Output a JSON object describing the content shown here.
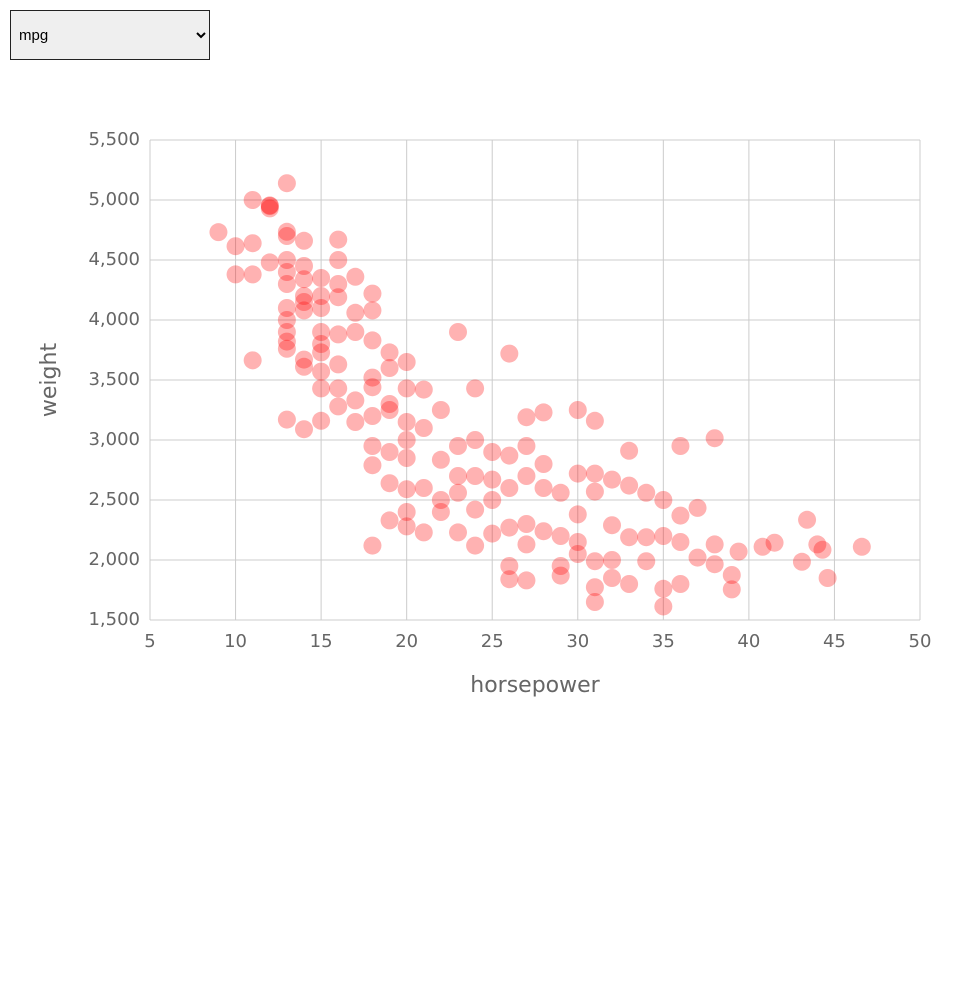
{
  "dropdown": {
    "selected": "mpg"
  },
  "chart_data": {
    "type": "scatter",
    "x_label": "horsepower",
    "y_label": "weight",
    "color": "#ff0000",
    "grid": true,
    "xlim": [
      5,
      50
    ],
    "xticks": [
      5,
      10,
      15,
      20,
      25,
      30,
      35,
      40,
      45,
      50
    ],
    "ylim": [
      1500,
      5500
    ],
    "yticks": [
      {
        "value": 1500,
        "label": "1,500"
      },
      {
        "value": 2000,
        "label": "2,000"
      },
      {
        "value": 2500,
        "label": "2,500"
      },
      {
        "value": 3000,
        "label": "3,000"
      },
      {
        "value": 3500,
        "label": "3,500"
      },
      {
        "value": 4000,
        "label": "4,000"
      },
      {
        "value": 4500,
        "label": "4,500"
      },
      {
        "value": 5000,
        "label": "5,000"
      },
      {
        "value": 5500,
        "label": "5,500"
      }
    ],
    "x": [
      9,
      10,
      10,
      11,
      11,
      11,
      11,
      12,
      12,
      12,
      12,
      13,
      13,
      13,
      13,
      13,
      13,
      13,
      13,
      13,
      13,
      13,
      13,
      14,
      14,
      14,
      14,
      14,
      14,
      14,
      14,
      14,
      15,
      15,
      15,
      15,
      15,
      15,
      15,
      15,
      15,
      16,
      16,
      16,
      16,
      16,
      16,
      16,
      16,
      17,
      17,
      17,
      17,
      17,
      18,
      18,
      18,
      18,
      18,
      18,
      18,
      18,
      18,
      19,
      19,
      19,
      19,
      19,
      19,
      19,
      20,
      20,
      20,
      20,
      20,
      20,
      20,
      20,
      21,
      21,
      21,
      21,
      22,
      22,
      22,
      22,
      23,
      23,
      23,
      23,
      23,
      24,
      24,
      24,
      24,
      24,
      25,
      25,
      25,
      25,
      26,
      26,
      26,
      26,
      26,
      26,
      27,
      27,
      27,
      27,
      27,
      27,
      28,
      28,
      28,
      28,
      29,
      29,
      29,
      29,
      30,
      30,
      30,
      30,
      30,
      31,
      31,
      31,
      31,
      31,
      31,
      32,
      32,
      32,
      32,
      33,
      33,
      33,
      33,
      34,
      34,
      34,
      35,
      35,
      35,
      35,
      36,
      36,
      36,
      36,
      37,
      37,
      38,
      38,
      38,
      39,
      39,
      39.4,
      40.8,
      41.5,
      43.1,
      43.4,
      44,
      44.3,
      44.6,
      46.6
    ],
    "y": [
      4732,
      4615,
      4380,
      4640,
      4380,
      3664,
      5000,
      4950,
      4955,
      4480,
      4930,
      5140,
      4735,
      4700,
      4500,
      4400,
      4300,
      4100,
      4000,
      3900,
      3820,
      3760,
      3170,
      4660,
      4450,
      4340,
      4200,
      4150,
      4080,
      3670,
      3610,
      3090,
      4350,
      4200,
      4100,
      3900,
      3800,
      3730,
      3570,
      3430,
      3160,
      4670,
      4500,
      4300,
      4190,
      3880,
      3630,
      3430,
      3280,
      4360,
      4060,
      3900,
      3330,
      3150,
      4220,
      4080,
      3830,
      3520,
      3440,
      3200,
      2950,
      2790,
      2120,
      3730,
      3600,
      3300,
      3250,
      2900,
      2640,
      2330,
      3650,
      3430,
      3150,
      3000,
      2850,
      2590,
      2400,
      2280,
      3420,
      3100,
      2600,
      2230,
      3250,
      2835,
      2500,
      2400,
      3900,
      2950,
      2700,
      2560,
      2230,
      3430,
      3000,
      2700,
      2420,
      2120,
      2900,
      2670,
      2500,
      2220,
      3720,
      2870,
      2600,
      2270,
      1950,
      1840,
      3190,
      2950,
      2700,
      2300,
      2130,
      1830,
      3230,
      2800,
      2600,
      2240,
      2560,
      2200,
      1950,
      1870,
      3250,
      2720,
      2380,
      2150,
      2050,
      3160,
      2720,
      2570,
      1990,
      1773,
      1650,
      2670,
      2290,
      2000,
      1850,
      2910,
      2620,
      2190,
      1800,
      2560,
      2190,
      1990,
      2500,
      2200,
      1760,
      1613,
      2950,
      2370,
      2150,
      1800,
      2434,
      2020,
      3015,
      2130,
      1965,
      1875,
      1755,
      2070,
      2110,
      2144,
      1985,
      2335,
      2130,
      2085,
      1850,
      2110
    ]
  }
}
